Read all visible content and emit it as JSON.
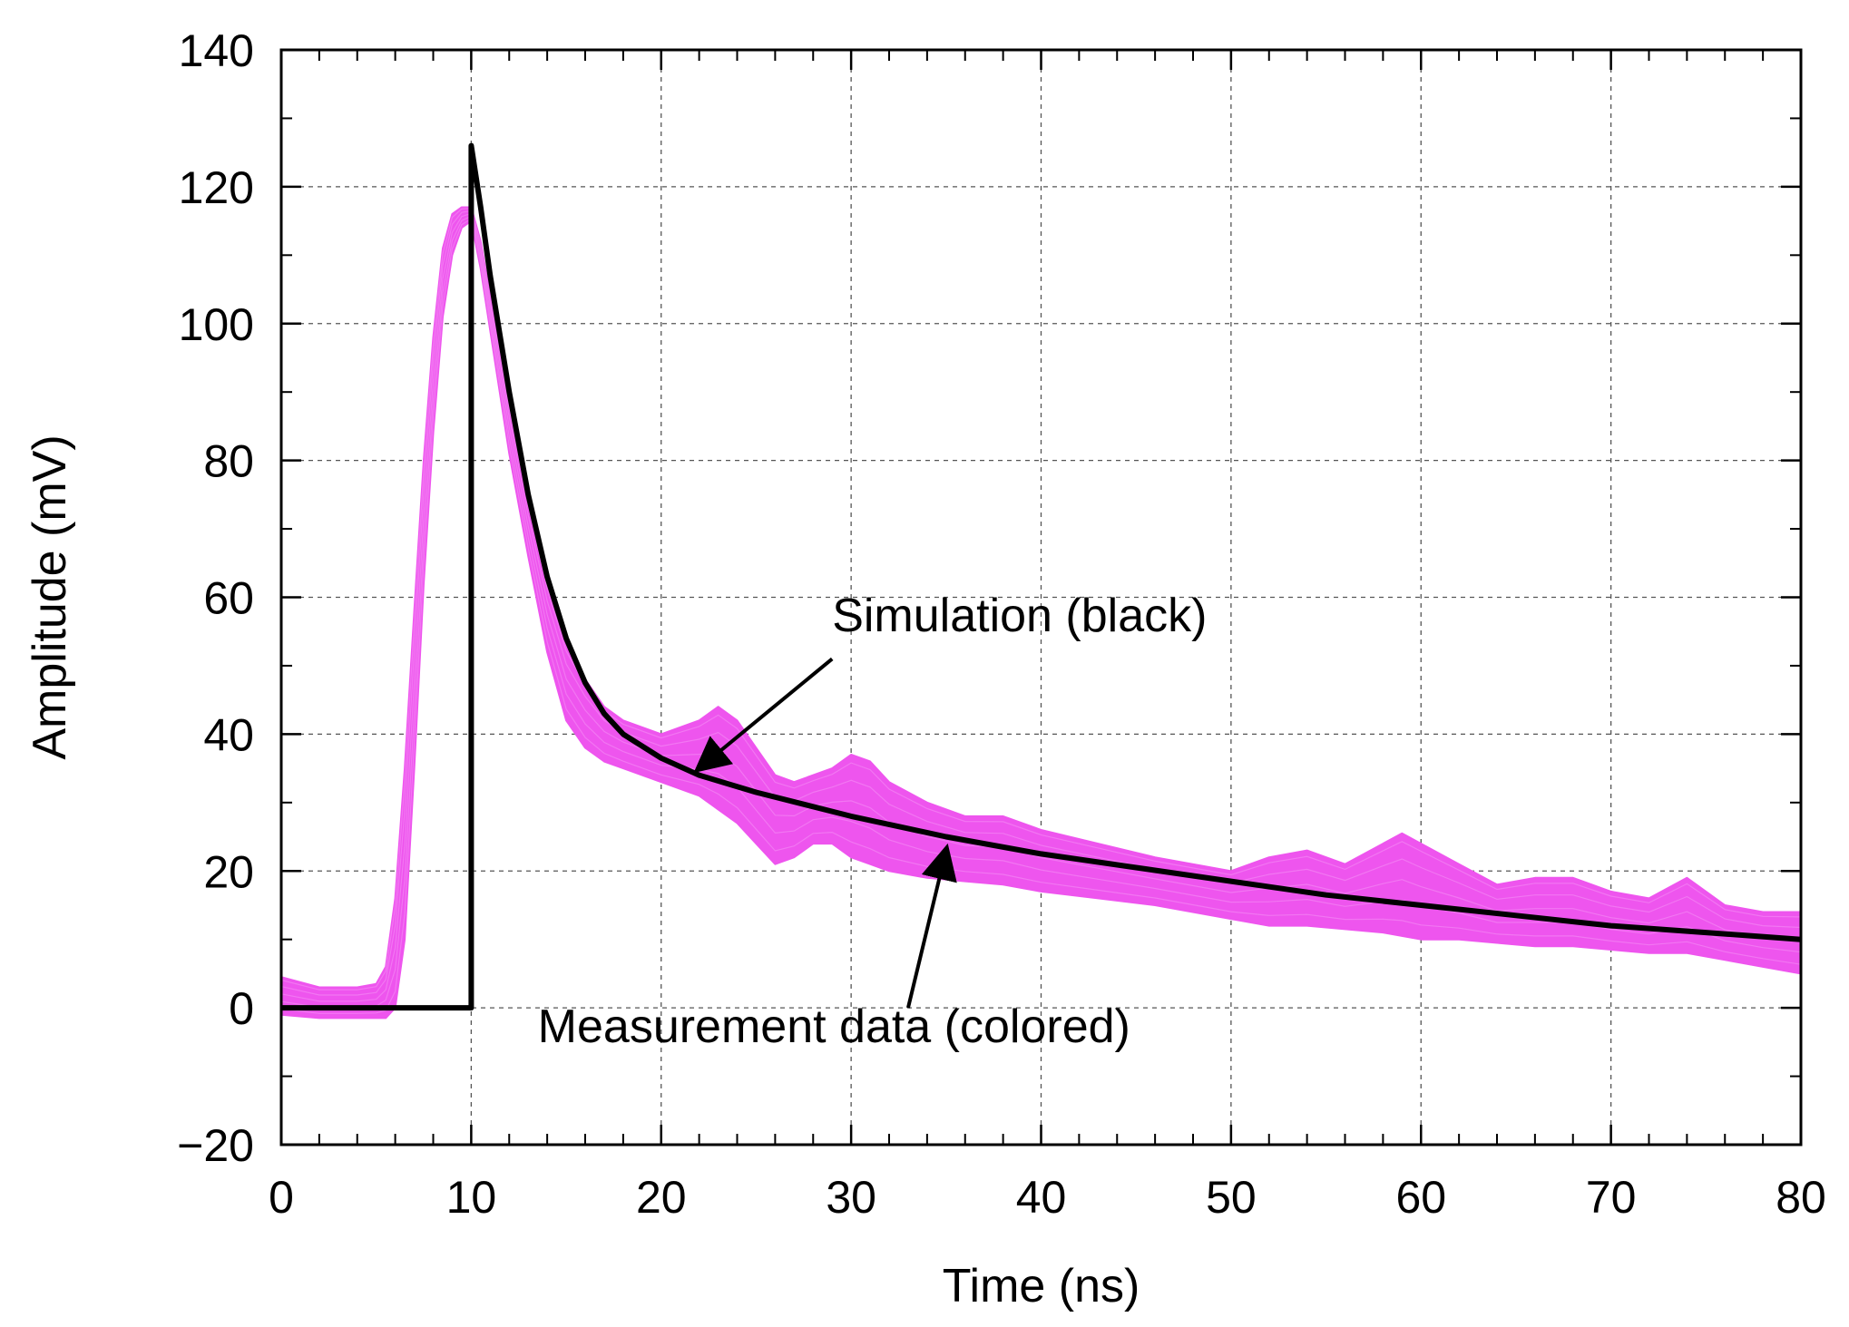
{
  "chart_data": {
    "type": "line",
    "title": "",
    "xlabel": "Time (ns)",
    "ylabel": "Amplitude (mV)",
    "xlim": [
      0,
      80
    ],
    "ylim": [
      -20,
      140
    ],
    "x_ticks": [
      0,
      10,
      20,
      30,
      40,
      50,
      60,
      70,
      80
    ],
    "y_ticks": [
      -20,
      0,
      20,
      40,
      60,
      80,
      100,
      120,
      140
    ],
    "x_tick_labels": [
      "0",
      "10",
      "20",
      "30",
      "40",
      "50",
      "60",
      "70",
      "80"
    ],
    "y_tick_labels": [
      "−20",
      "0",
      "20",
      "40",
      "60",
      "80",
      "100",
      "120",
      "140"
    ],
    "grid": true,
    "colors": {
      "measurement": "#ee55ee",
      "simulation": "#000000"
    },
    "series": [
      {
        "name": "Simulation (black)",
        "style": "line",
        "x": [
          0,
          10,
          10,
          10.5,
          11,
          12,
          13,
          14,
          15,
          16,
          17,
          18,
          20,
          22,
          25,
          30,
          35,
          40,
          45,
          50,
          55,
          60,
          65,
          70,
          75,
          80
        ],
        "y": [
          0,
          0,
          126,
          117,
          107,
          90,
          75,
          63,
          54,
          47.5,
          43,
          40,
          36.5,
          34,
          31.5,
          28,
          25,
          22.5,
          20.5,
          18.5,
          16.5,
          15,
          13.5,
          12,
          11,
          10
        ]
      },
      {
        "name": "Measurement data (colored)",
        "style": "band",
        "x": [
          0,
          2,
          4,
          5,
          5.5,
          6,
          6.5,
          7,
          7.5,
          8,
          8.5,
          9,
          9.5,
          10,
          10.5,
          11,
          12,
          13,
          14,
          15,
          16,
          17,
          18,
          20,
          22,
          23,
          24,
          25,
          26,
          27,
          28,
          29,
          30,
          31,
          32,
          34,
          36,
          38,
          40,
          43,
          46,
          50,
          52,
          54,
          56,
          58,
          59,
          60,
          62,
          64,
          66,
          68,
          70,
          72,
          74,
          76,
          78,
          80
        ],
        "upper": [
          4.5,
          3,
          3,
          3.5,
          6,
          16,
          35,
          58,
          80,
          98,
          111,
          116,
          117,
          117,
          112,
          104,
          88,
          74,
          62,
          53,
          48,
          44,
          42,
          40,
          42,
          44,
          42,
          38,
          34,
          33,
          34,
          35,
          37,
          36,
          33,
          30,
          28,
          28,
          26,
          24,
          22,
          20,
          22,
          23,
          21,
          24,
          25.5,
          24,
          21,
          18,
          19,
          19,
          17,
          16,
          19,
          15,
          14,
          14
        ],
        "lower": [
          -1,
          -1.5,
          -1.5,
          -1.5,
          -1.5,
          0,
          10,
          35,
          62,
          84,
          101,
          110,
          114,
          115,
          108,
          99,
          81,
          66,
          52,
          42,
          38,
          36,
          35,
          33,
          31,
          29,
          27,
          24,
          21,
          22,
          24,
          24,
          22,
          21,
          20,
          19,
          18.5,
          18,
          17,
          16,
          15,
          13,
          12,
          12,
          11.5,
          11,
          10.5,
          10,
          10,
          9.5,
          9,
          9,
          8.5,
          8,
          8,
          7,
          6,
          5
        ]
      }
    ],
    "annotations": [
      {
        "text": "Simulation (black)",
        "text_at": [
          29,
          55
        ],
        "arrow_from": [
          29,
          51
        ],
        "arrow_to": [
          22,
          35
        ]
      },
      {
        "text": "Measurement data (colored)",
        "text_at": [
          13.5,
          -5
        ],
        "arrow_from": [
          33,
          0
        ],
        "arrow_to": [
          35,
          23
        ]
      }
    ]
  }
}
